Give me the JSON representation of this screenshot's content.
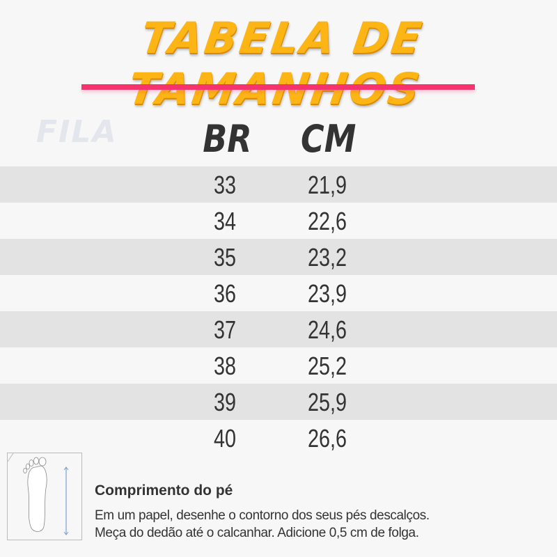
{
  "title": "TABELA DE TAMANHOS",
  "brand_logo": "FILA",
  "colors": {
    "title": "#fdb515",
    "accent_line": "#f5346e",
    "stripe": "#e3e3e3"
  },
  "table": {
    "headers": [
      "BR",
      "CM"
    ],
    "rows": [
      {
        "br": "33",
        "cm": "21,9"
      },
      {
        "br": "34",
        "cm": "22,6"
      },
      {
        "br": "35",
        "cm": "23,2"
      },
      {
        "br": "36",
        "cm": "23,9"
      },
      {
        "br": "37",
        "cm": "24,6"
      },
      {
        "br": "38",
        "cm": "25,2"
      },
      {
        "br": "39",
        "cm": "25,9"
      },
      {
        "br": "40",
        "cm": "26,6"
      }
    ]
  },
  "instructions": {
    "icon": "foot-measure-icon",
    "title": "Comprimento do pé",
    "lines": [
      "Em um papel, desenhe o contorno dos seus pés descalços.",
      "Meça do dedão até o calcanhar. Adicione 0,5 cm de folga."
    ]
  }
}
